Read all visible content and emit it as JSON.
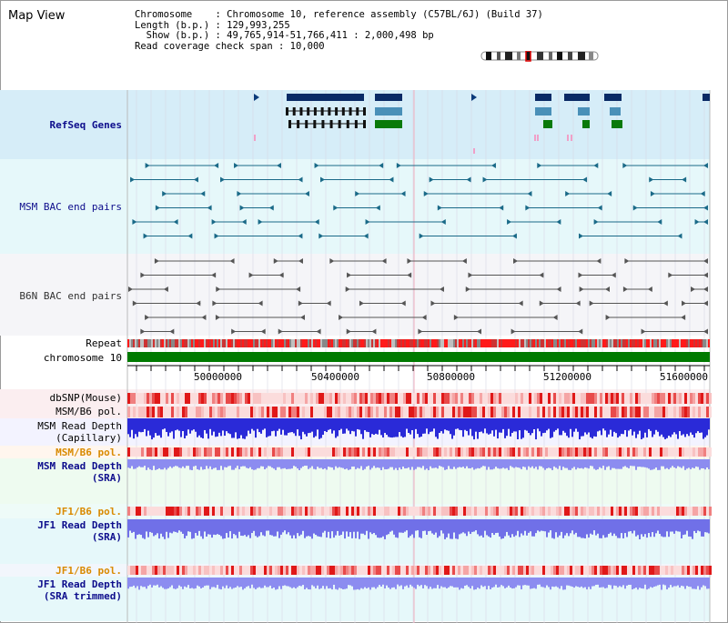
{
  "header": {
    "title": "Map View",
    "info_lines": [
      "Chromosome    : Chromosome 10, reference assembly (C57BL/6J) (Build 37)",
      "Length (b.p.) : 129,993,255",
      "  Show (b.p.) : 49,765,914-51,766,411 : 2,000,498 bp",
      "Read coverage check span : 10,000"
    ]
  },
  "tracks": {
    "refseq": "RefSeq Genes",
    "msm_bac": "MSM BAC end pairs",
    "b6n_bac": "B6N BAC end pairs",
    "repeat": "Repeat",
    "chromosome": "chromosome 10",
    "dbsnp": "dbSNP(Mouse)",
    "msm_b6_pol_1": "MSM/B6 pol.",
    "msm_read_depth_cap": "MSM Read Depth\n(Capillary)",
    "msm_b6_pol_2": "MSM/B6 pol.",
    "msm_read_depth_sra": "MSM Read Depth\n(SRA)",
    "jf1_b6_pol_1": "JF1/B6 pol.",
    "jf1_read_depth_sra": "JF1 Read Depth\n(SRA)",
    "jf1_b6_pol_2": "JF1/B6 pol.",
    "jf1_read_depth_trim": "JF1 Read Depth\n(SRA trimmed)"
  },
  "axis": {
    "ticks": [
      "50000000",
      "50400000",
      "50800000",
      "51200000",
      "51600000"
    ]
  },
  "colors": {
    "label_blue": "#0d0d8c",
    "label_orange": "#d98a00",
    "refseq_bg": "#d6edf8",
    "msm_bac_bg": "#e6f8fa",
    "b6n_bac_bg": "#f6f6fa",
    "chromosome_bar": "#007a00"
  }
}
